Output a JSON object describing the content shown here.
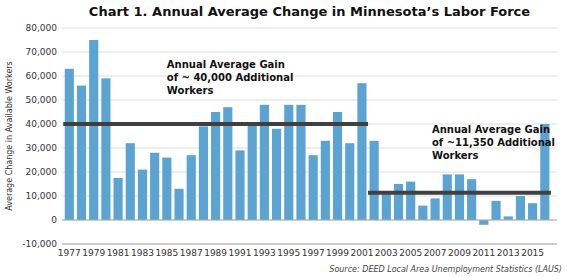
{
  "chart_data": {
    "type": "bar",
    "title": "Chart 1. Annual Average Change in Minnesota’s Labor Force",
    "ylabel": "Average Change in Available Workers",
    "source": "Source: DEED Local Area Unemployment Statistics (LAUS)",
    "x": [
      1977,
      1978,
      1979,
      1980,
      1981,
      1982,
      1983,
      1984,
      1985,
      1986,
      1987,
      1988,
      1989,
      1990,
      1991,
      1992,
      1993,
      1994,
      1995,
      1996,
      1997,
      1998,
      1999,
      2000,
      2001,
      2002,
      2003,
      2004,
      2005,
      2006,
      2007,
      2008,
      2009,
      2010,
      2011,
      2012,
      2013,
      2014,
      2015,
      2016
    ],
    "values": [
      63000,
      56000,
      75000,
      59000,
      17500,
      32000,
      21000,
      28000,
      26000,
      13000,
      27000,
      39000,
      45000,
      47000,
      29000,
      40500,
      48000,
      38000,
      48000,
      48000,
      27000,
      33000,
      45000,
      32000,
      57000,
      33000,
      12000,
      15000,
      16000,
      6000,
      9000,
      19000,
      19000,
      17000,
      -2000,
      8000,
      1500,
      10000,
      7000,
      40000
    ],
    "color": "#5BA3D0",
    "xlim": [
      1976.4,
      2017.0
    ],
    "xticks": [
      1977,
      1979,
      1981,
      1983,
      1985,
      1987,
      1989,
      1991,
      1993,
      1995,
      1997,
      1999,
      2001,
      2003,
      2005,
      2007,
      2009,
      2011,
      2013,
      2015
    ],
    "ylim": [
      -10000,
      80000
    ],
    "yticks": [
      {
        "value": -10000,
        "label": "-10,000"
      },
      0,
      {
        "value": 10000,
        "label": "10,000"
      },
      {
        "value": 20000,
        "label": "20,000"
      },
      {
        "value": 30000,
        "label": "30,000"
      },
      {
        "value": 40000,
        "label": "40,000"
      },
      {
        "value": 50000,
        "label": "50,000"
      },
      {
        "value": 60000,
        "label": "60,000"
      },
      {
        "value": 70000,
        "label": "70,000"
      },
      {
        "value": 80000,
        "label": "80,000"
      }
    ],
    "grid": true,
    "reference_lines": [
      {
        "value": 40000,
        "x_start": 1976.5,
        "x_end": 2001.5,
        "color": "#404040"
      },
      {
        "value": 11350,
        "x_start": 2001.5,
        "x_end": 2016.5,
        "color": "#404040"
      }
    ],
    "annotations": [
      {
        "text": "Annual Average Gain\nof ~ 40,000 Additional\nWorkers",
        "x": 1985,
        "y": 67000
      },
      {
        "text": "Annual Average Gain\nof ~11,350 Additional\nWorkers",
        "x": 2010.5,
        "y": 40000
      }
    ]
  }
}
